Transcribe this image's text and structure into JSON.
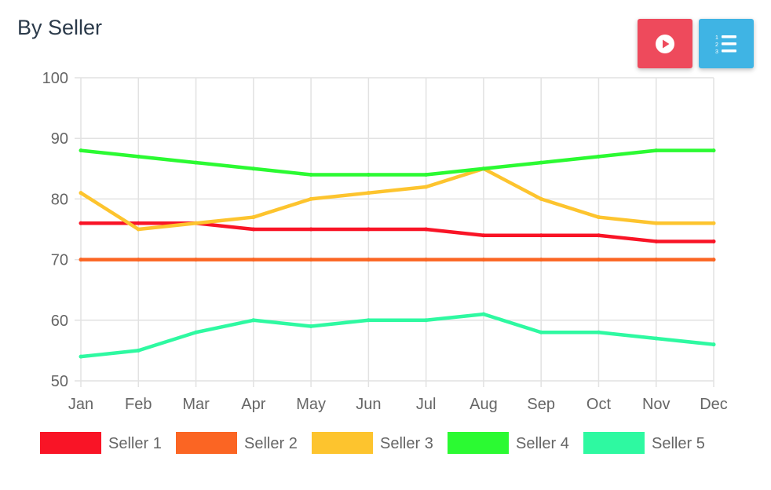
{
  "header": {
    "title": "By Seller",
    "play_icon": "play-circle-icon",
    "list_icon": "ordered-list-icon"
  },
  "colors": {
    "play_button": "#ee4a5c",
    "list_button": "#3fb4e4",
    "grid": "#e2e2e2",
    "text": "#666666"
  },
  "chart_data": {
    "type": "line",
    "categories": [
      "Jan",
      "Feb",
      "Mar",
      "Apr",
      "May",
      "Jun",
      "Jul",
      "Aug",
      "Sep",
      "Oct",
      "Nov",
      "Dec"
    ],
    "ylim": [
      50,
      100
    ],
    "yticks": [
      50,
      60,
      70,
      80,
      90,
      100
    ],
    "grid": true,
    "legend_position": "bottom",
    "series": [
      {
        "name": "Seller 1",
        "color": "#f91426",
        "values": [
          76,
          76,
          76,
          75,
          75,
          75,
          75,
          74,
          74,
          74,
          73,
          73
        ]
      },
      {
        "name": "Seller 2",
        "color": "#fb6523",
        "values": [
          70,
          70,
          70,
          70,
          70,
          70,
          70,
          70,
          70,
          70,
          70,
          70
        ]
      },
      {
        "name": "Seller 3",
        "color": "#fdc42e",
        "values": [
          81,
          75,
          76,
          77,
          80,
          81,
          82,
          85,
          80,
          77,
          76,
          76
        ]
      },
      {
        "name": "Seller 4",
        "color": "#2bfa32",
        "values": [
          88,
          87,
          86,
          85,
          84,
          84,
          84,
          85,
          86,
          87,
          88,
          88
        ]
      },
      {
        "name": "Seller 5",
        "color": "#2ef9a1",
        "values": [
          54,
          55,
          58,
          60,
          59,
          60,
          60,
          61,
          58,
          58,
          57,
          56
        ]
      }
    ]
  }
}
